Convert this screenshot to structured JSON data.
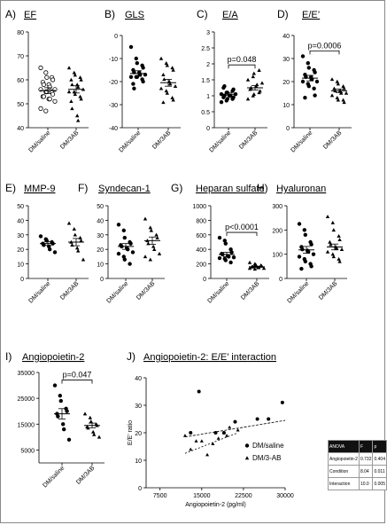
{
  "colors": {
    "ink": "#000000",
    "marker_fill": "#000000",
    "open_marker": "#ffffff",
    "stat_header_bg": "#111111"
  },
  "chart_data": [
    {
      "type": "scatter",
      "panel": "A)",
      "title": "EF",
      "categories": [
        "DM/saline",
        "DM/3AB"
      ],
      "ylim": [
        40,
        80
      ],
      "ticks": [
        40,
        50,
        60,
        70,
        80
      ],
      "series": [
        {
          "values": [
            65,
            63,
            61,
            61,
            60,
            59,
            58,
            58,
            57,
            56,
            56,
            55,
            55,
            55,
            54,
            53,
            53,
            52,
            52,
            51,
            48,
            47
          ],
          "marker": "open-circle"
        },
        {
          "values": [
            65,
            63,
            62,
            61,
            60,
            60,
            58,
            58,
            57,
            56,
            55,
            55,
            54,
            53,
            52,
            51,
            48,
            45,
            43
          ],
          "marker": "triangle"
        }
      ],
      "means": [
        55.5,
        56.0
      ],
      "sems": [
        1.2,
        1.5
      ],
      "grid": false
    },
    {
      "type": "scatter",
      "panel": "B)",
      "title": "GLS",
      "categories": [
        "DM/saline",
        "DM/3AB"
      ],
      "ylim": [
        -40,
        0
      ],
      "ticks": [
        -40,
        -30,
        -20,
        -10,
        0
      ],
      "series": [
        {
          "values": [
            -5,
            -10,
            -12,
            -13,
            -14,
            -15,
            -16,
            -16,
            -17,
            -17,
            -18,
            -18,
            -18,
            -19,
            -20,
            -21,
            -23
          ],
          "marker": "circle"
        },
        {
          "values": [
            -10,
            -12,
            -13,
            -14,
            -15,
            -17,
            -19,
            -20,
            -21,
            -22,
            -23,
            -24,
            -25,
            -27,
            -28,
            -29
          ],
          "marker": "triangle"
        }
      ],
      "means": [
        -16.5,
        -20.5
      ],
      "sems": [
        1.2,
        1.5
      ],
      "grid": false
    },
    {
      "type": "scatter",
      "panel": "C)",
      "title": "E/A",
      "categories": [
        "DM/saline",
        "DM/3AB"
      ],
      "ylim": [
        0,
        3
      ],
      "ticks": [
        0,
        0.5,
        1.0,
        1.5,
        2.0,
        2.5,
        3.0
      ],
      "series": [
        {
          "values": [
            0.8,
            0.85,
            0.9,
            0.9,
            0.95,
            0.95,
            1.0,
            1.0,
            1.0,
            1.05,
            1.05,
            1.1,
            1.1,
            1.15,
            1.2,
            1.25,
            1.3
          ],
          "marker": "circle"
        },
        {
          "values": [
            0.9,
            1.0,
            1.05,
            1.1,
            1.15,
            1.2,
            1.25,
            1.3,
            1.35,
            1.4,
            1.5,
            1.6,
            1.7,
            1.8
          ],
          "marker": "triangle"
        }
      ],
      "means": [
        1.05,
        1.25
      ],
      "sems": [
        0.04,
        0.07
      ],
      "annotation": "p=0.048",
      "grid": false
    },
    {
      "type": "scatter",
      "panel": "D)",
      "title": "E/E’",
      "categories": [
        "DM/saline",
        "DM/3AB"
      ],
      "ylim": [
        0,
        40
      ],
      "ticks": [
        0,
        10,
        20,
        30,
        40
      ],
      "series": [
        {
          "values": [
            31,
            28,
            26,
            25,
            24,
            23,
            22,
            22,
            21,
            20,
            20,
            19,
            18,
            17,
            14,
            13
          ],
          "marker": "circle"
        },
        {
          "values": [
            21,
            20,
            19,
            18,
            17,
            17,
            16,
            16,
            15,
            15,
            14,
            13,
            12,
            12,
            11
          ],
          "marker": "triangle"
        }
      ],
      "means": [
        21.5,
        16
      ],
      "sems": [
        1.2,
        0.8
      ],
      "annotation": "p=0.0006",
      "grid": false
    },
    {
      "type": "scatter",
      "panel": "E)",
      "title": "MMP-9",
      "categories": [
        "DM/saline",
        "DM/3AB"
      ],
      "ylim": [
        0,
        50
      ],
      "ticks": [
        0,
        10,
        20,
        30,
        40,
        50
      ],
      "series": [
        {
          "values": [
            29,
            27,
            26,
            25,
            24,
            24,
            23,
            22,
            20,
            18
          ],
          "marker": "circle"
        },
        {
          "values": [
            38,
            34,
            30,
            28,
            26,
            25,
            23,
            21,
            19,
            13
          ],
          "marker": "triangle"
        }
      ],
      "means": [
        24,
        25
      ],
      "sems": [
        1.3,
        2.5
      ],
      "grid": false
    },
    {
      "type": "scatter",
      "panel": "F)",
      "title": "Syndecan-1",
      "categories": [
        "DM/saline",
        "DM/3AB"
      ],
      "ylim": [
        0,
        50
      ],
      "ticks": [
        0,
        10,
        20,
        30,
        40,
        50
      ],
      "series": [
        {
          "values": [
            37,
            33,
            28,
            25,
            24,
            23,
            22,
            21,
            20,
            18,
            17,
            15,
            13,
            10
          ],
          "marker": "circle"
        },
        {
          "values": [
            41,
            35,
            33,
            30,
            28,
            26,
            24,
            22,
            20,
            17,
            15,
            13
          ],
          "marker": "triangle"
        }
      ],
      "means": [
        22,
        26
      ],
      "sems": [
        2.0,
        2.5
      ],
      "grid": false
    },
    {
      "type": "scatter",
      "panel": "G)",
      "title": "Heparan sulfate",
      "categories": [
        "DM/saline",
        "DM/3AB"
      ],
      "ylim": [
        0,
        1000
      ],
      "ticks": [
        0,
        200,
        400,
        600,
        800,
        1000
      ],
      "series": [
        {
          "values": [
            560,
            520,
            480,
            400,
            360,
            340,
            330,
            310,
            300,
            290,
            280,
            270,
            250,
            220
          ],
          "marker": "circle"
        },
        {
          "values": [
            220,
            200,
            190,
            180,
            170,
            160,
            160,
            150,
            150,
            140,
            140,
            130
          ],
          "marker": "triangle"
        }
      ],
      "means": [
        330,
        160
      ],
      "sems": [
        30,
        8
      ],
      "annotation": "p<0.0001",
      "grid": false
    },
    {
      "type": "scatter",
      "panel": "H)",
      "title": "Hyaluronan",
      "categories": [
        "DM/saline",
        "DM/3AB"
      ],
      "ylim": [
        0,
        300
      ],
      "ticks": [
        0,
        100,
        200,
        300
      ],
      "series": [
        {
          "values": [
            225,
            200,
            180,
            150,
            140,
            130,
            120,
            115,
            110,
            100,
            90,
            80,
            70,
            60,
            50,
            40
          ],
          "marker": "circle"
        },
        {
          "values": [
            255,
            230,
            200,
            175,
            160,
            150,
            140,
            130,
            125,
            120,
            110,
            100,
            90,
            80,
            70
          ],
          "marker": "triangle"
        }
      ],
      "means": [
        118,
        130
      ],
      "sems": [
        14,
        12
      ],
      "grid": false
    },
    {
      "type": "scatter",
      "panel": "I)",
      "title": "Angiopoietin-2",
      "categories": [
        "DM/saline",
        "DM/3AB"
      ],
      "ylim": [
        0,
        35000
      ],
      "ticks": [
        5000,
        15000,
        25000,
        35000
      ],
      "series": [
        {
          "values": [
            30000,
            26000,
            24000,
            21000,
            20000,
            19000,
            18000,
            15000,
            13000,
            9000
          ],
          "marker": "circle"
        },
        {
          "values": [
            19000,
            17500,
            16000,
            15000,
            14500,
            14000,
            13500,
            12000,
            11000,
            10000
          ],
          "marker": "triangle"
        }
      ],
      "means": [
        19000,
        14500
      ],
      "sems": [
        2000,
        900
      ],
      "annotation": "p=0.047",
      "grid": false
    },
    {
      "type": "scatter",
      "panel": "J)",
      "title": "Angiopoietin-2: E/E’ interaction",
      "xlabel": "Angiopoietin-2 (pg/ml)",
      "ylabel": "E/E’ ratio",
      "xlim": [
        5000,
        30000
      ],
      "ylim": [
        0,
        40
      ],
      "xticks": [
        7500,
        15000,
        22500,
        30000
      ],
      "yticks": [
        0,
        10,
        20,
        30,
        40
      ],
      "series": [
        {
          "name": "DM/saline",
          "marker": "circle",
          "points": [
            [
              13000,
              20
            ],
            [
              14500,
              35
            ],
            [
              17500,
              20
            ],
            [
              19000,
              20
            ],
            [
              21000,
              24
            ],
            [
              25000,
              25
            ],
            [
              27000,
              25
            ],
            [
              29500,
              31
            ]
          ],
          "fit": [
            [
              12000,
              18.5
            ],
            [
              30000,
              24.5
            ]
          ]
        },
        {
          "name": "DM/3-AB",
          "marker": "triangle",
          "points": [
            [
              12000,
              19
            ],
            [
              13000,
              14
            ],
            [
              14000,
              17
            ],
            [
              15000,
              17
            ],
            [
              16000,
              12
            ],
            [
              17000,
              16
            ],
            [
              18000,
              18
            ],
            [
              19000,
              20
            ],
            [
              19500,
              19
            ],
            [
              20000,
              22
            ],
            [
              21500,
              21
            ]
          ],
          "fit": [
            [
              12000,
              12.5
            ],
            [
              21500,
              20
            ]
          ]
        }
      ],
      "legend": "inside-bottom-right",
      "grid": false
    }
  ],
  "anova_table": {
    "header": [
      "ANOVA",
      "F",
      "p"
    ],
    "rows": [
      [
        "Angiopoietin-2",
        "0.732",
        "0.404"
      ],
      [
        "Condition",
        "8.04",
        "0.011"
      ],
      [
        "Interaction",
        "10.0",
        "0.005"
      ]
    ]
  }
}
